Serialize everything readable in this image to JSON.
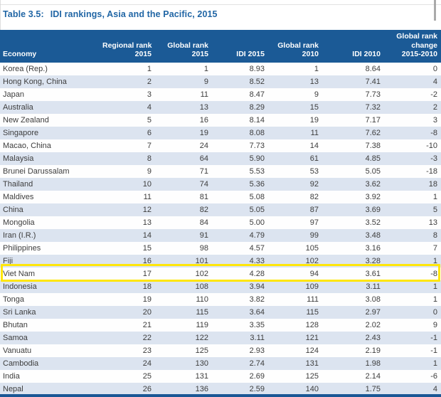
{
  "caption": {
    "label": "Table 3.5:",
    "title": "IDI rankings, Asia and the Pacific, 2015"
  },
  "colors": {
    "title_color": "#2166a5",
    "header_bg": "#1b5a96",
    "header_text": "#ffffff",
    "stripe": "#dce4f0",
    "row_text": "#3d3d3d",
    "highlight": "#ffe60a",
    "bottom_bar": "#1a5795"
  },
  "table": {
    "columns": [
      {
        "key": "economy",
        "align": "left",
        "lines": [
          "Economy"
        ]
      },
      {
        "key": "regional-rank-2015",
        "align": "right",
        "lines": [
          "Regional rank",
          "2015"
        ]
      },
      {
        "key": "global-rank-2015",
        "align": "right",
        "lines": [
          "Global rank",
          "2015"
        ]
      },
      {
        "key": "idi-2015",
        "align": "right",
        "lines": [
          "IDI 2015"
        ]
      },
      {
        "key": "global-rank-2010",
        "align": "right",
        "lines": [
          "Global rank",
          "2010"
        ]
      },
      {
        "key": "idi-2010",
        "align": "right",
        "lines": [
          "IDI 2010"
        ]
      },
      {
        "key": "global-rank-change",
        "align": "right",
        "lines": [
          "Global rank",
          "change",
          "2015-2010"
        ]
      }
    ],
    "rows": [
      [
        "Korea (Rep.)",
        "1",
        "1",
        "8.93",
        "1",
        "8.64",
        "0"
      ],
      [
        "Hong Kong, China",
        "2",
        "9",
        "8.52",
        "13",
        "7.41",
        "4"
      ],
      [
        "Japan",
        "3",
        "11",
        "8.47",
        "9",
        "7.73",
        "-2"
      ],
      [
        "Australia",
        "4",
        "13",
        "8.29",
        "15",
        "7.32",
        "2"
      ],
      [
        "New Zealand",
        "5",
        "16",
        "8.14",
        "19",
        "7.17",
        "3"
      ],
      [
        "Singapore",
        "6",
        "19",
        "8.08",
        "11",
        "7.62",
        "-8"
      ],
      [
        "Macao, China",
        "7",
        "24",
        "7.73",
        "14",
        "7.38",
        "-10"
      ],
      [
        "Malaysia",
        "8",
        "64",
        "5.90",
        "61",
        "4.85",
        "-3"
      ],
      [
        "Brunei Darussalam",
        "9",
        "71",
        "5.53",
        "53",
        "5.05",
        "-18"
      ],
      [
        "Thailand",
        "10",
        "74",
        "5.36",
        "92",
        "3.62",
        "18"
      ],
      [
        "Maldives",
        "11",
        "81",
        "5.08",
        "82",
        "3.92",
        "1"
      ],
      [
        "China",
        "12",
        "82",
        "5.05",
        "87",
        "3.69",
        "5"
      ],
      [
        "Mongolia",
        "13",
        "84",
        "5.00",
        "97",
        "3.52",
        "13"
      ],
      [
        "Iran (I.R.)",
        "14",
        "91",
        "4.79",
        "99",
        "3.48",
        "8"
      ],
      [
        "Philippines",
        "15",
        "98",
        "4.57",
        "105",
        "3.16",
        "7"
      ],
      [
        "Fiji",
        "16",
        "101",
        "4.33",
        "102",
        "3.28",
        "1"
      ],
      [
        "Viet Nam",
        "17",
        "102",
        "4.28",
        "94",
        "3.61",
        "-8"
      ],
      [
        "Indonesia",
        "18",
        "108",
        "3.94",
        "109",
        "3.11",
        "1"
      ],
      [
        "Tonga",
        "19",
        "110",
        "3.82",
        "111",
        "3.08",
        "1"
      ],
      [
        "Sri Lanka",
        "20",
        "115",
        "3.64",
        "115",
        "2.97",
        "0"
      ],
      [
        "Bhutan",
        "21",
        "119",
        "3.35",
        "128",
        "2.02",
        "9"
      ],
      [
        "Samoa",
        "22",
        "122",
        "3.11",
        "121",
        "2.43",
        "-1"
      ],
      [
        "Vanuatu",
        "23",
        "125",
        "2.93",
        "124",
        "2.19",
        "-1"
      ],
      [
        "Cambodia",
        "24",
        "130",
        "2.74",
        "131",
        "1.98",
        "1"
      ],
      [
        "India",
        "25",
        "131",
        "2.69",
        "125",
        "2.14",
        "-6"
      ],
      [
        "Nepal",
        "26",
        "136",
        "2.59",
        "140",
        "1.75",
        "4"
      ]
    ],
    "highlight": {
      "economy": "Viet Nam",
      "row_index": 16
    }
  }
}
